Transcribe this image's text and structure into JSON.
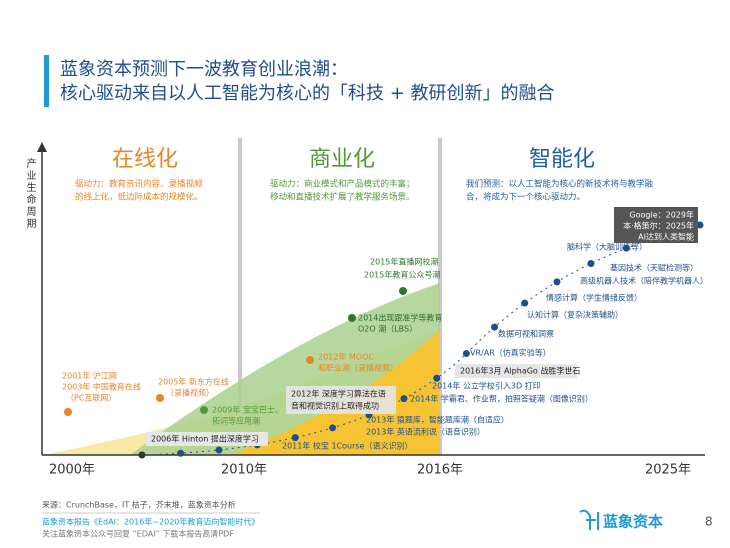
{
  "title": [
    "蓝象资本预测下一波教育创业浪潮：",
    "核心驱动来自以人工智能为核心的「科技 + 教研创新」的融合"
  ],
  "y_axis_label": "产业生命周期",
  "x_labels": [
    "2000年",
    "2010年",
    "2016年",
    "2025年"
  ],
  "phases": [
    {
      "name": "在线化",
      "description": [
        "驱动力：教育资讯内容、录播视频",
        "的线上化，低边际成本的规模化。"
      ]
    },
    {
      "name": "商业化",
      "description": [
        "驱动力：商业模式和产品模式的丰富；",
        "移动和直播技术扩展了教学服务场景。"
      ]
    },
    {
      "name": "智能化",
      "description": [
        "我们预测：以人工智能为核心的新技术将与教学融",
        "合，将成为下一个核心驱动力。"
      ]
    }
  ],
  "online_events": [
    [
      "2001年 沪江网",
      "2003年 中国教育在线",
      "（PC互联网）"
    ],
    [
      "2005年 新东方在线",
      "（录播视频）"
    ],
    [
      "2009年 宝宝巴士、",
      "拓词等应用潮"
    ],
    [
      "2012年 MOOC",
      "和职业潮（录播视频）"
    ],
    [
      "2014出现跟准学等教育",
      "O2O 潮（LBS）"
    ],
    [
      "2015年直播网校潮",
      "2015年教育公众号潮"
    ]
  ],
  "ai_events": [
    [
      "2006年 Hinton 提出深度学习"
    ],
    [
      "2011年 校宝 1Course（语义识别）"
    ],
    [
      "2012年 深度学习算法在语",
      "音和视觉识别上取得成功"
    ],
    [
      "2013年 猿题库，智能题库潮（自适应）",
      "2013年 英语流利说（语音识别）"
    ],
    [
      "2014年 学霸君、作业帮，拍照答疑潮（图像识别）"
    ],
    [
      "2014年 公立学校引入3D 打印"
    ],
    [
      "2016年3月 AlphaGo 战胜李世石"
    ],
    [
      "VR/AR（仿真实验等）"
    ],
    [
      "数据可视和洞察"
    ],
    [
      "认知计算（复杂决策辅助）"
    ],
    [
      "情感计算（学生情绪反馈）"
    ],
    [
      "高级机器人技术（陪伴教学机器人）"
    ],
    [
      "基因技术（天赋检测等）"
    ],
    [
      "脑科学（大脑训练等）"
    ]
  ],
  "prediction": [
    "Google：2029年",
    "本·格策尔：2025年",
    "AI达到人类智能"
  ],
  "footer": {
    "source": "来源：CrunchBase，IT 桔子，芥末堆，蓝象资本分析",
    "report": "蓝象资本报告《EdAI：2016年~2020年教育迈向智能时代》",
    "note": "关注蓝象资本公众号回复 “EDAI” 下载本报告高清PDF"
  },
  "logo": "蓝象资本",
  "page_number": "8"
}
